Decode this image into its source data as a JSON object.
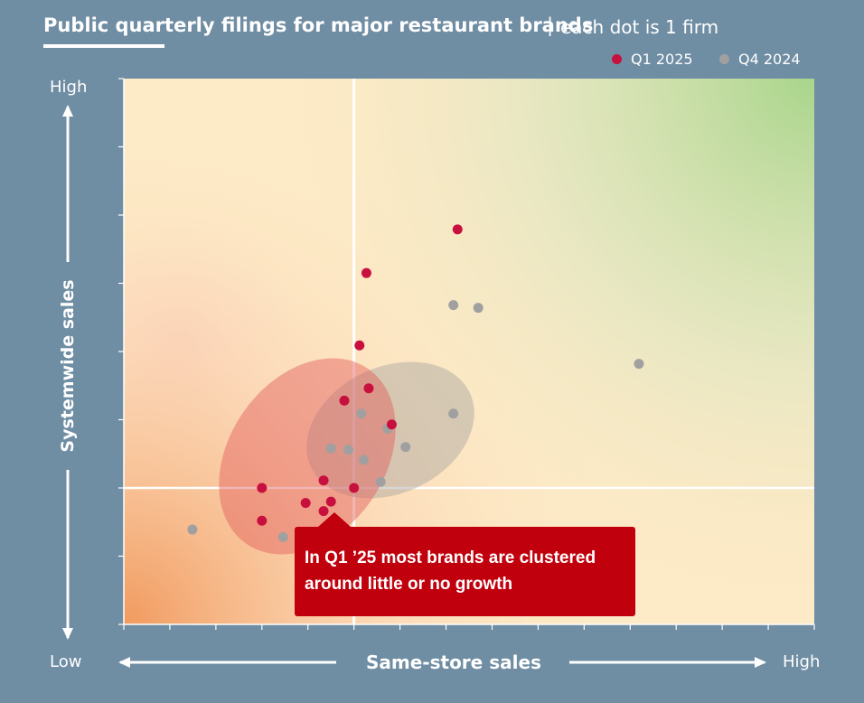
{
  "title": {
    "bold": "Public quarterly filings for major restaurant brands",
    "separator": "|",
    "subtitle": "each dot is 1 firm"
  },
  "legend": [
    {
      "label": "Q1 2025",
      "color": "#c8103e"
    },
    {
      "label": "Q4 2024",
      "color": "#a0a0a0"
    }
  ],
  "callout": {
    "text": "In Q1 ’25 most brands are clustered around little or no growth",
    "color": "#c0000c"
  },
  "chart_data": {
    "type": "scatter",
    "title": "Public quarterly filings for major restaurant brands",
    "subtitle": "each dot is 1 firm",
    "xlabel": "Same-store sales",
    "ylabel": "Systemwide sales",
    "x_tick_labels": {
      "low": "Low",
      "high": "High"
    },
    "y_tick_labels": {
      "low": "Low",
      "high": "High"
    },
    "xlim": [
      0,
      15
    ],
    "ylim": [
      0,
      8
    ],
    "reference_lines": {
      "x": 5,
      "y": 2
    },
    "grid": false,
    "legend_position": "top-right",
    "background": "gradient from orange (low/low) to green (high/high)",
    "series": [
      {
        "name": "Q1 2025",
        "color": "#c8103e",
        "points": [
          {
            "x": 7.25,
            "y": 5.79
          },
          {
            "x": 5.27,
            "y": 5.15
          },
          {
            "x": 5.12,
            "y": 4.09
          },
          {
            "x": 4.79,
            "y": 3.28
          },
          {
            "x": 5.32,
            "y": 3.46
          },
          {
            "x": 5.82,
            "y": 2.93
          },
          {
            "x": 4.34,
            "y": 2.11
          },
          {
            "x": 5.0,
            "y": 2.0
          },
          {
            "x": 3.0,
            "y": 2.0
          },
          {
            "x": 3.95,
            "y": 1.78
          },
          {
            "x": 4.5,
            "y": 1.8
          },
          {
            "x": 4.34,
            "y": 1.66
          },
          {
            "x": 3.0,
            "y": 1.52
          }
        ]
      },
      {
        "name": "Q4 2024",
        "color": "#a0a0a0",
        "points": [
          {
            "x": 7.16,
            "y": 4.68
          },
          {
            "x": 7.7,
            "y": 4.64
          },
          {
            "x": 11.19,
            "y": 3.82
          },
          {
            "x": 5.16,
            "y": 3.09
          },
          {
            "x": 7.16,
            "y": 3.09
          },
          {
            "x": 5.73,
            "y": 2.87
          },
          {
            "x": 6.12,
            "y": 2.6
          },
          {
            "x": 4.5,
            "y": 2.58
          },
          {
            "x": 4.88,
            "y": 2.56
          },
          {
            "x": 5.21,
            "y": 2.41
          },
          {
            "x": 5.58,
            "y": 2.09
          },
          {
            "x": 1.49,
            "y": 1.39
          },
          {
            "x": 3.46,
            "y": 1.28
          }
        ]
      }
    ]
  }
}
